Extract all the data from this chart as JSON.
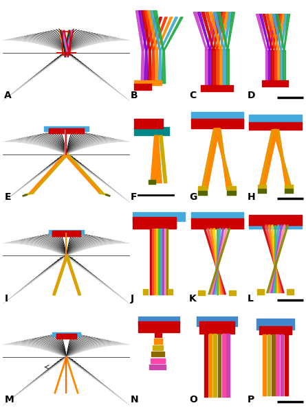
{
  "figure_size": [
    4.45,
    6.0
  ],
  "dpi": 100,
  "bg": "#ffffff",
  "panel_labels": [
    "A",
    "B",
    "C",
    "D",
    "E",
    "F",
    "G",
    "H",
    "I",
    "J",
    "K",
    "L",
    "M",
    "N",
    "O",
    "P"
  ],
  "label_fontsize": 10,
  "scale_bar_panels": [
    "D",
    "F",
    "H",
    "L",
    "P"
  ],
  "row0": {
    "wing_dark": 0.05,
    "wing_light": 0.75,
    "center_outline_colors": [
      "#ff8c00",
      "#000000",
      "#008888",
      "#ff69b4",
      "#cc44cc"
    ],
    "center_fill_colors": [
      "#cc0000",
      "#ff8c00",
      "#00aaaa",
      "#ff00ff",
      "#cc44cc"
    ],
    "horiz_color": "#cc0000"
  },
  "row1": {
    "top_red": "#cc0000",
    "top_blue": "#44aadd",
    "top_pink": "#ff9999",
    "leg_orange": "#ff8800",
    "leg_gold": "#ccaa00",
    "leg_dark": "#556600"
  },
  "row2": {
    "top_red": "#cc0000",
    "top_blue": "#44aadd",
    "leg_orange": "#ff8800",
    "leg_gold": "#ccaa00"
  },
  "row3": {
    "top_red": "#cc0000",
    "top_blue": "#44aadd",
    "leg_orange": "#ff8800",
    "leg_pink": "#ff44aa",
    "leg_gold": "#ccaa00"
  },
  "bcd_colors": [
    "#cc44cc",
    "#9900cc",
    "#cc0000",
    "#ff0000",
    "#ff4400",
    "#ff8c00",
    "#44aacc",
    "#22aa44",
    "#ffaacc"
  ],
  "efgh_red": "#cc0000",
  "efgh_blue": "#44aadd",
  "efgh_teal": "#008888",
  "efgh_orange": "#ff8800",
  "efgh_gold": "#ccaa00",
  "efgh_dark": "#556600",
  "ijkl_red": "#cc0000",
  "ijkl_blue": "#44aadd",
  "ijkl_stripe_colors": [
    "#cc0000",
    "#ff4444",
    "#ff8800",
    "#ffcc00",
    "#44bb44",
    "#44aacc",
    "#aa44cc",
    "#ff88aa",
    "#888800"
  ],
  "ijkl_gold": "#ccaa00",
  "mnop_colors": [
    "#cc0000",
    "#ff8800",
    "#ccaa00",
    "#886600",
    "#ff44aa",
    "#cc44aa",
    "#4488cc"
  ]
}
